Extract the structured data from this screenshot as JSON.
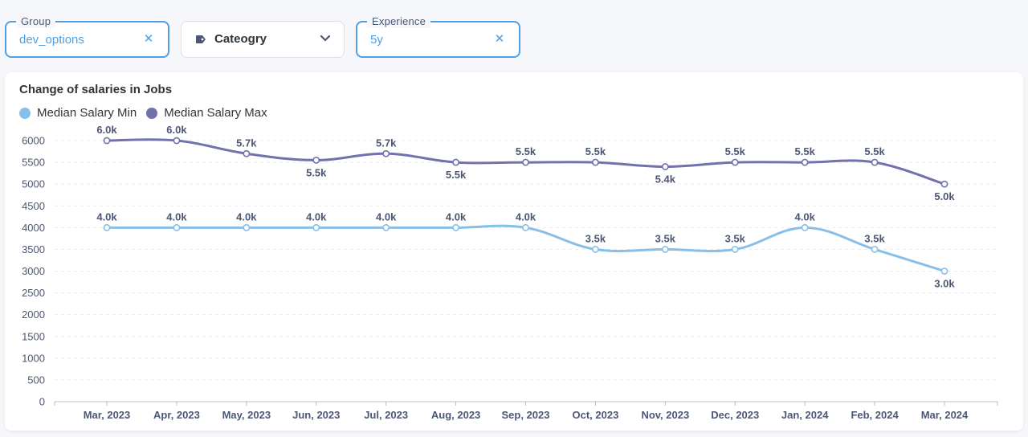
{
  "filters": {
    "group": {
      "label": "Group",
      "value": "dev_options"
    },
    "category": {
      "placeholder": "Cateogry"
    },
    "experience": {
      "label": "Experience",
      "value": "5y"
    }
  },
  "colors": {
    "min": "#88bfe8",
    "max": "#7172ad",
    "accent": "#509ee3"
  },
  "chart_data": {
    "type": "line",
    "title": "Change of salaries in Jobs",
    "categories": [
      "Mar, 2023",
      "Apr, 2023",
      "May, 2023",
      "Jun, 2023",
      "Jul, 2023",
      "Aug, 2023",
      "Sep, 2023",
      "Oct, 2023",
      "Nov, 2023",
      "Dec, 2023",
      "Jan, 2024",
      "Feb, 2024",
      "Mar, 2024"
    ],
    "series": [
      {
        "name": "Median Salary Min",
        "values": [
          4000,
          4000,
          4000,
          4000,
          4000,
          4000,
          4000,
          3500,
          3500,
          3500,
          4000,
          3500,
          3000
        ],
        "labels": [
          "4.0k",
          "4.0k",
          "4.0k",
          "4.0k",
          "4.0k",
          "4.0k",
          "4.0k",
          "3.5k",
          "3.5k",
          "3.5k",
          "4.0k",
          "3.5k",
          "3.0k"
        ]
      },
      {
        "name": "Median Salary Max",
        "values": [
          6000,
          6000,
          5700,
          5550,
          5700,
          5500,
          5500,
          5500,
          5400,
          5500,
          5500,
          5500,
          5000
        ],
        "labels": [
          "6.0k",
          "6.0k",
          "5.7k",
          "5.5k",
          "5.7k",
          "5.5k",
          "5.5k",
          "5.5k",
          "5.4k",
          "5.5k",
          "5.5k",
          "5.5k",
          "5.0k"
        ]
      }
    ],
    "ylim": [
      0,
      6000
    ],
    "yticks": [
      "0",
      "500",
      "1000",
      "1500",
      "2000",
      "2500",
      "3000",
      "3500",
      "4000",
      "4500",
      "5000",
      "5500",
      "6000"
    ],
    "grid": true,
    "legend": "top-left"
  }
}
